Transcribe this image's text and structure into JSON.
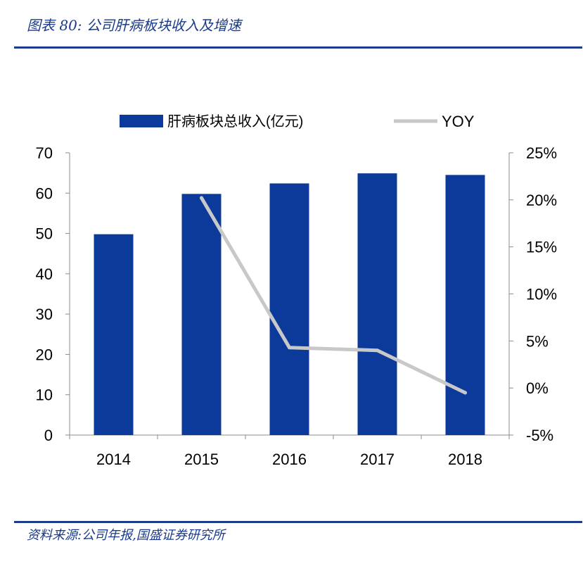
{
  "header": {
    "caption": "图表 80:  公司肝病板块收入及增速"
  },
  "footer": {
    "source": "资料来源:公司年报,国盛证券研究所"
  },
  "colors": {
    "bar": "#0b3a9a",
    "line": "#c8c8c8",
    "axis": "#8c8c8c",
    "text": "#000000"
  },
  "chart_data": {
    "type": "bar",
    "title": "",
    "categories": [
      "2014",
      "2015",
      "2016",
      "2017",
      "2018"
    ],
    "series": [
      {
        "name": "肝病板块总收入(亿元)",
        "type": "bar",
        "axis": "left",
        "values": [
          49.8,
          59.8,
          62.4,
          64.9,
          64.5
        ]
      },
      {
        "name": "YOY",
        "type": "line",
        "axis": "right",
        "values": [
          null,
          20.2,
          4.3,
          4.0,
          -0.5
        ]
      }
    ],
    "y_left": {
      "min": 0,
      "max": 70,
      "ticks": [
        "0",
        "10",
        "20",
        "30",
        "40",
        "50",
        "60",
        "70"
      ]
    },
    "y_right": {
      "min": -5,
      "max": 25,
      "ticks": [
        "-5%",
        "0%",
        "5%",
        "10%",
        "15%",
        "20%",
        "25%"
      ]
    },
    "legend": {
      "position": "top"
    },
    "grid": false
  }
}
